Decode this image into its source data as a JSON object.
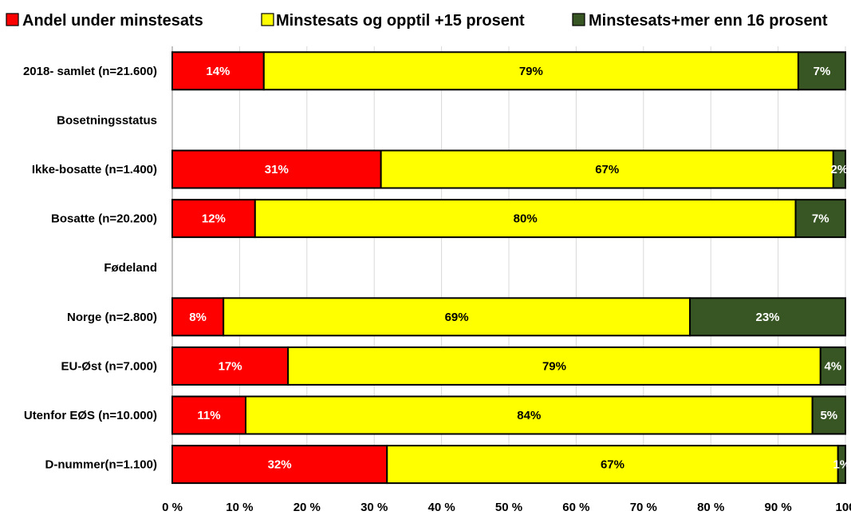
{
  "chart_data": {
    "type": "bar",
    "orientation": "horizontal",
    "stacked": true,
    "percent_stacked": true,
    "legend_position": "top",
    "grid": true,
    "xlim": [
      0,
      100
    ],
    "x_ticks": [
      "0 %",
      "10 %",
      "20 %",
      "30 %",
      "40 %",
      "50 %",
      "60 %",
      "70 %",
      "80 %",
      "90 %",
      "100"
    ],
    "series": [
      {
        "name": "Andel under minstesats",
        "color": "#ff0000",
        "label_color": "#ffffff"
      },
      {
        "name": "Minstesats og opptil +15 prosent",
        "color": "#ffff00",
        "label_color": "#000000"
      },
      {
        "name": "Minstesats+mer enn 16 prosent",
        "color": "#375623",
        "label_color": "#ffffff"
      }
    ],
    "rows": [
      {
        "label": "2018- samlet (n=21.600)",
        "values": [
          13.6,
          79.4,
          7.0
        ],
        "labels": [
          "14%",
          "79%",
          "7%"
        ]
      },
      {
        "label": "Bosetningsstatus",
        "heading": true
      },
      {
        "label": "Ikke-bosatte (n=1.400)",
        "values": [
          31.0,
          67.2,
          1.8
        ],
        "labels": [
          "31%",
          "67%",
          "2%"
        ]
      },
      {
        "label": "Bosatte (n=20.200)",
        "values": [
          12.3,
          80.3,
          7.4
        ],
        "labels": [
          "12%",
          "80%",
          "7%"
        ]
      },
      {
        "label": "Fødeland",
        "heading": true
      },
      {
        "label": "Norge (n=2.800)",
        "values": [
          7.6,
          69.3,
          23.1
        ],
        "labels": [
          "8%",
          "69%",
          "23%"
        ]
      },
      {
        "label": "EU-Øst (n=7.000)",
        "values": [
          17.2,
          79.1,
          3.7
        ],
        "labels": [
          "17%",
          "79%",
          "4%"
        ]
      },
      {
        "label": "Utenfor EØS (n=10.000)",
        "values": [
          10.9,
          84.2,
          4.9
        ],
        "labels": [
          "11%",
          "84%",
          "5%"
        ]
      },
      {
        "label": "D-nummer(n=1.100)",
        "values": [
          31.9,
          67.0,
          1.1
        ],
        "labels": [
          "32%",
          "67%",
          "1%"
        ]
      }
    ]
  }
}
